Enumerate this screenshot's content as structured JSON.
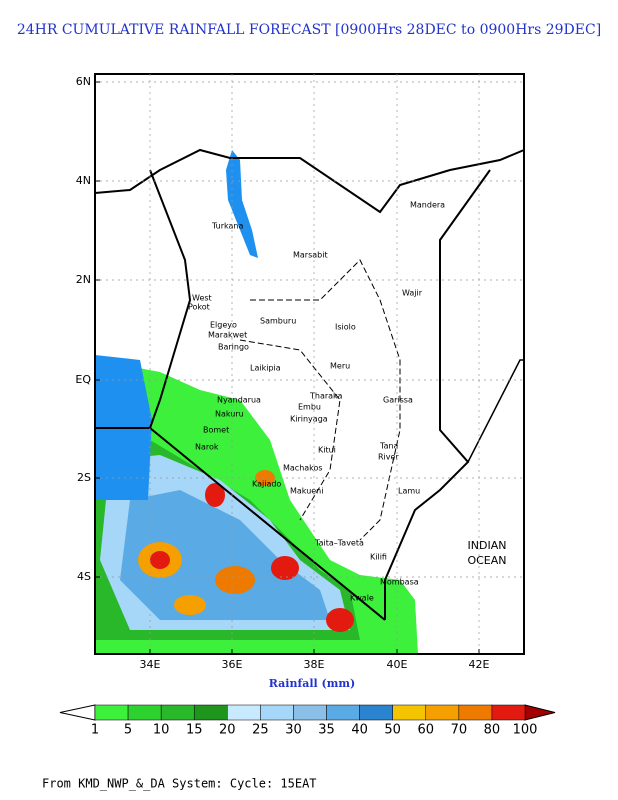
{
  "title": "24HR CUMULATIVE RAINFALL FORECAST [0900Hrs 28DEC to 0900Hrs 29DEC]",
  "map": {
    "lat_labels": [
      "6N",
      "4N",
      "2N",
      "EQ",
      "2S",
      "4S"
    ],
    "lon_labels": [
      "34E",
      "36E",
      "38E",
      "40E",
      "42E"
    ],
    "places": [
      "Turkana",
      "Marsabit",
      "Mandera",
      "Wajir",
      "West",
      "Pokot",
      "Samburu",
      "Isiolo",
      "Elgeyo",
      "Marakwet",
      "Baringo",
      "Laikipia",
      "Meru",
      "Garissa",
      "Tharaka",
      "Embu",
      "Kirinyaga",
      "Nyandarua",
      "Nakuru",
      "Kitui",
      "Tana",
      "River",
      "Machakos",
      "Kajiado",
      "Makueni",
      "Narok",
      "Bomet",
      "Lamu",
      "Taita–Taveta",
      "Kilifi",
      "Mombasa",
      "Kwale"
    ],
    "ocean_label": [
      "INDIAN",
      "OCEAN"
    ],
    "x_label": "Rainfall (mm)"
  },
  "colorbar": {
    "levels": [
      1,
      5,
      10,
      15,
      20,
      25,
      30,
      35,
      40,
      50,
      60,
      70,
      80,
      100
    ],
    "colors": [
      "#3cf03c",
      "#2ed22e",
      "#29b829",
      "#1e961e",
      "#c8eaff",
      "#a6d6f8",
      "#8ac0e8",
      "#5aaae6",
      "#2b84d0",
      "#f5c400",
      "#f5a000",
      "#ee7a00",
      "#e31a10"
    ],
    "under_color": "#ffffff",
    "over_color": "#a50000"
  },
  "footer": "From  KMD_NWP_&_DA System: Cycle: 15EAT"
}
